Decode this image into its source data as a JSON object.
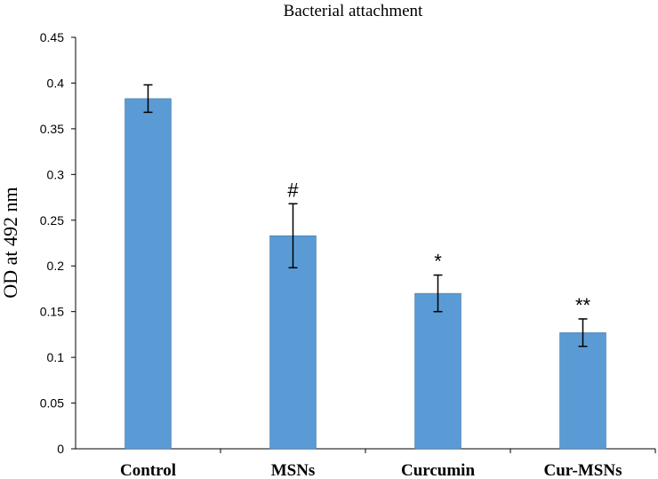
{
  "chart_data": {
    "type": "bar",
    "title": "Bacterial attachment",
    "xlabel": "",
    "ylabel": "OD at 492 nm",
    "ylim": [
      0,
      0.45
    ],
    "yticks": [
      0,
      0.05,
      0.1,
      0.15,
      0.2,
      0.25,
      0.3,
      0.35,
      0.4,
      0.45
    ],
    "ytick_labels": [
      "0",
      "0.05",
      "0.1",
      "0.15",
      "0.2",
      "0.25",
      "0.3",
      "0.35",
      "0.4",
      "0.45"
    ],
    "categories": [
      "Control",
      "MSNs",
      "Curcumin",
      "Cur-MSNs"
    ],
    "values": [
      0.383,
      0.233,
      0.17,
      0.127
    ],
    "errors": [
      0.015,
      0.035,
      0.02,
      0.015
    ],
    "annotations": [
      "",
      "#",
      "*",
      "**"
    ],
    "grid": false,
    "legend": "none",
    "colors": {
      "bar": "#5b9bd5",
      "bar_edge": "#41719c",
      "axis": "#000000"
    }
  }
}
